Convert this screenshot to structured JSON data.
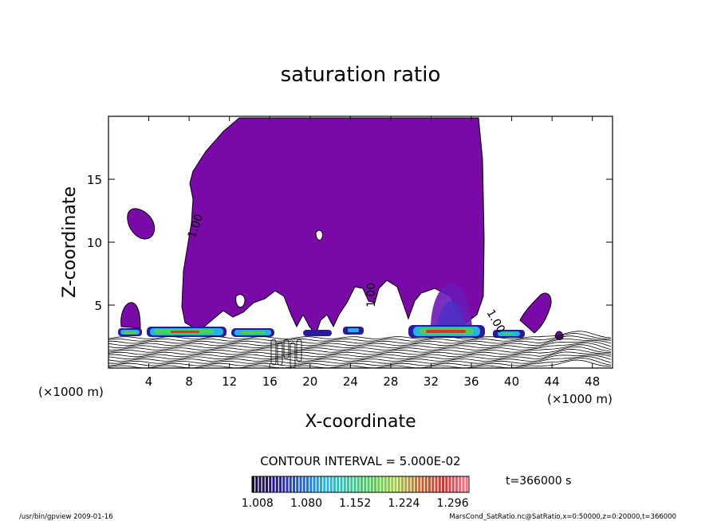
{
  "chart_data": {
    "type": "contour",
    "title": "saturation ratio",
    "xlabel": "X-coordinate",
    "ylabel": "Z-coordinate",
    "x_unit": "(×1000 m)",
    "y_unit": "(×1000 m)",
    "xlim": [
      0,
      50
    ],
    "ylim": [
      0,
      20
    ],
    "x_ticks": [
      4,
      8,
      12,
      16,
      20,
      24,
      28,
      32,
      36,
      40,
      44,
      48
    ],
    "y_ticks": [
      5,
      10,
      15
    ],
    "contour_labels": [
      "1.00",
      "1.00",
      "1.00"
    ],
    "contour_interval_text": "CONTOUR INTERVAL = 5.000E-02",
    "colorbar": {
      "tick_labels": [
        "1.008",
        "1.080",
        "1.152",
        "1.224",
        "1.296"
      ],
      "min": 1.0,
      "max": 1.32,
      "colors": [
        "#1a0a2e",
        "#2b1a9e",
        "#1f5fd6",
        "#22b4e8",
        "#33c9a0",
        "#4fd04f",
        "#a0d040",
        "#c46a30",
        "#e03030",
        "#ff7080"
      ]
    },
    "fill_color": "#7a0aa8",
    "time_label": "t=366000 s"
  },
  "footer": {
    "left": "/usr/bin/gpview   2009-01-16",
    "right": "MarsCond_SatRatio.nc@SatRatio,x=0:50000,z=0:20000,t=366000"
  }
}
